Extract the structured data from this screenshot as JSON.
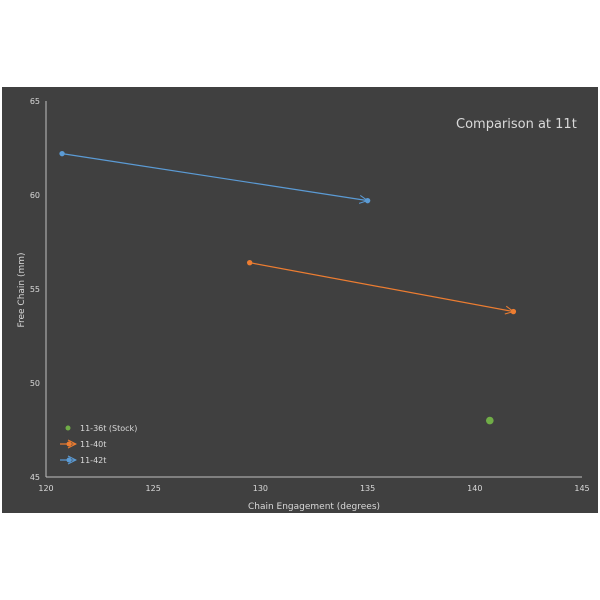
{
  "chart_data": {
    "type": "scatter",
    "title": "Comparison at 11t",
    "xlabel": "Chain Engagement  (degrees)",
    "ylabel": "Free Chain (mm)",
    "xlim": [
      120,
      145
    ],
    "ylim": [
      45,
      65
    ],
    "xticks": [
      120,
      125,
      130,
      135,
      140,
      145
    ],
    "yticks": [
      45,
      50,
      55,
      60,
      65
    ],
    "grid": false,
    "legend_position": "bottom-left",
    "series": [
      {
        "name": "11-36t (Stock)",
        "color": "#70ad47",
        "marker": "dot",
        "x": [
          140.7
        ],
        "y": [
          48.0
        ]
      },
      {
        "name": "11-40t",
        "color": "#ed7d31",
        "marker": "arrow-line",
        "x": [
          129.5,
          141.8
        ],
        "y": [
          56.4,
          53.8
        ]
      },
      {
        "name": "11-42t",
        "color": "#5b9bd5",
        "marker": "arrow-line",
        "x": [
          120.75,
          135.0
        ],
        "y": [
          62.2,
          59.7
        ]
      }
    ]
  }
}
